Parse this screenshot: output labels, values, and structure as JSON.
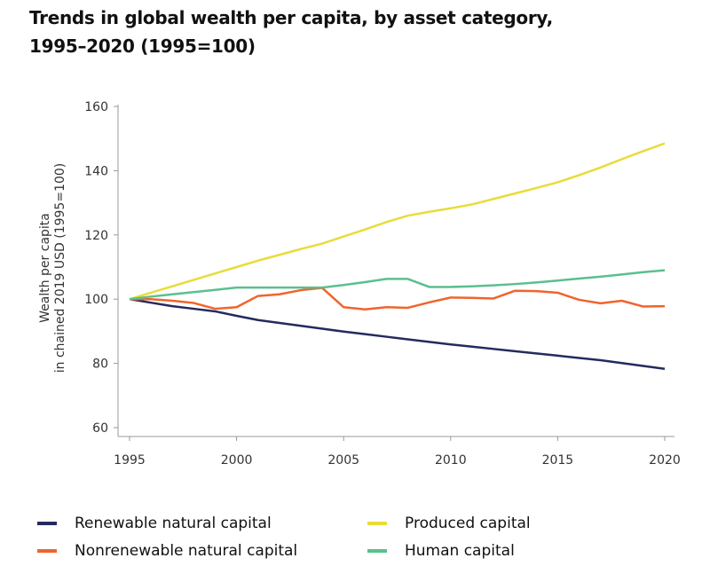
{
  "chart_data": {
    "type": "line",
    "title": "Trends in global wealth per capita, by asset category, 1995–2020 (1995=100)",
    "title_lines": [
      "Trends in global wealth per capita, by asset category,",
      "1995–2020 (1995=100)"
    ],
    "ylabel_lines": [
      "Wealth per capita",
      "in chained 2019 USD (1995=100)"
    ],
    "xlabel": "",
    "xlim": [
      1995,
      2020
    ],
    "ylim": [
      60,
      160
    ],
    "xticks": [
      1995,
      2000,
      2005,
      2010,
      2015,
      2020
    ],
    "yticks": [
      60,
      80,
      100,
      120,
      140,
      160
    ],
    "x": [
      1995,
      1996,
      1997,
      1998,
      1999,
      2000,
      2001,
      2002,
      2003,
      2004,
      2005,
      2006,
      2007,
      2008,
      2009,
      2010,
      2011,
      2012,
      2013,
      2014,
      2015,
      2016,
      2017,
      2018,
      2019,
      2020
    ],
    "series": [
      {
        "name": "Renewable natural capital",
        "color": "#232b5e",
        "values": [
          100,
          98.9,
          97.8,
          97,
          96.2,
          94.8,
          93.5,
          92.6,
          91.7,
          90.8,
          89.9,
          89.1,
          88.3,
          87.5,
          86.7,
          85.9,
          85.2,
          84.5,
          83.8,
          83.1,
          82.4,
          81.7,
          81,
          80.1,
          79.2,
          78.3
        ]
      },
      {
        "name": "Nonrenewable natural capital",
        "color": "#f0642c",
        "values": [
          100,
          100,
          99.5,
          98.8,
          97,
          97.5,
          101,
          101.5,
          102.8,
          103.5,
          97.5,
          96.8,
          97.5,
          97.3,
          99,
          100.5,
          100.4,
          100.2,
          102.6,
          102.5,
          102,
          99.8,
          98.7,
          99.5,
          97.7,
          97.8
        ]
      },
      {
        "name": "Produced capital",
        "color": "#e8dc3a",
        "values": [
          100,
          102,
          104,
          106,
          108,
          110,
          112,
          113.8,
          115.6,
          117.3,
          119.5,
          121.7,
          124,
          126,
          127.2,
          128.3,
          129.5,
          131.2,
          132.9,
          134.6,
          136.4,
          138.6,
          141,
          143.6,
          146.1,
          148.5
        ]
      },
      {
        "name": "Human capital",
        "color": "#5bbf8e",
        "values": [
          100,
          100.8,
          101.5,
          102.2,
          102.9,
          103.6,
          103.6,
          103.6,
          103.6,
          103.6,
          104.4,
          105.3,
          106.3,
          106.3,
          103.8,
          103.8,
          104,
          104.3,
          104.7,
          105.2,
          105.8,
          106.4,
          107,
          107.7,
          108.4,
          109
        ]
      }
    ],
    "legend_placement": "bottom",
    "grid": false
  }
}
